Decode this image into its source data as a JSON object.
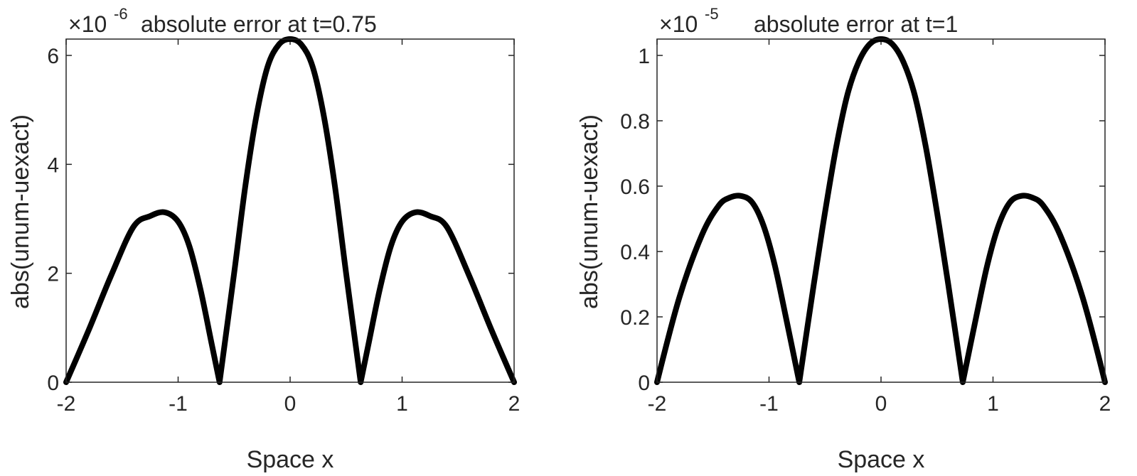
{
  "chart_data": [
    {
      "type": "line",
      "title": "absolute error at t=0.75",
      "xlabel": "Space x",
      "ylabel": "abs(unum-uexact)",
      "exponent_base": "×10",
      "exponent_power": "-6",
      "xlim": [
        -2,
        2
      ],
      "ylim": [
        0,
        6.3
      ],
      "xticks": [
        -2,
        -1,
        0,
        1,
        2
      ],
      "xtick_labels": [
        "-2",
        "-1",
        "0",
        "1",
        "2"
      ],
      "yticks": [
        0,
        2,
        4,
        6
      ],
      "ytick_labels": [
        "0",
        "2",
        "4",
        "6"
      ],
      "grid": false,
      "series": [
        {
          "color": "#000000",
          "x": [
            -2.0,
            -1.8,
            -1.6,
            -1.4,
            -1.25,
            -1.12,
            -1.0,
            -0.9,
            -0.8,
            -0.7,
            -0.63,
            -0.5,
            -0.4,
            -0.3,
            -0.2,
            -0.1,
            0.0,
            0.1,
            0.2,
            0.3,
            0.4,
            0.5,
            0.63,
            0.7,
            0.8,
            0.9,
            1.0,
            1.12,
            1.25,
            1.4,
            1.6,
            1.8,
            2.0
          ],
          "y": [
            0.0,
            0.95,
            1.95,
            2.85,
            3.05,
            3.12,
            2.95,
            2.5,
            1.7,
            0.7,
            0.0,
            2.0,
            3.6,
            4.9,
            5.8,
            6.2,
            6.3,
            6.2,
            5.8,
            4.9,
            3.6,
            2.0,
            0.0,
            0.7,
            1.7,
            2.5,
            2.95,
            3.12,
            3.05,
            2.85,
            1.95,
            0.95,
            0.0
          ]
        }
      ]
    },
    {
      "type": "line",
      "title": "absolute error at t=1",
      "xlabel": "Space x",
      "ylabel": "abs(unum-uexact)",
      "exponent_base": "×10",
      "exponent_power": "-5",
      "xlim": [
        -2,
        2
      ],
      "ylim": [
        0,
        1.05
      ],
      "xticks": [
        -2,
        -1,
        0,
        1,
        2
      ],
      "xtick_labels": [
        "-2",
        "-1",
        "0",
        "1",
        "2"
      ],
      "yticks": [
        0,
        0.2,
        0.4,
        0.6,
        0.8,
        1
      ],
      "ytick_labels": [
        "0",
        "0.2",
        "0.4",
        "0.6",
        "0.8",
        "1"
      ],
      "grid": false,
      "series": [
        {
          "color": "#000000",
          "x": [
            -2.0,
            -1.8,
            -1.6,
            -1.45,
            -1.35,
            -1.25,
            -1.15,
            -1.05,
            -0.95,
            -0.85,
            -0.73,
            -0.6,
            -0.5,
            -0.4,
            -0.3,
            -0.2,
            -0.1,
            0.0,
            0.1,
            0.2,
            0.3,
            0.4,
            0.5,
            0.6,
            0.73,
            0.85,
            0.95,
            1.05,
            1.15,
            1.25,
            1.35,
            1.45,
            1.6,
            1.8,
            2.0
          ],
          "y": [
            0.0,
            0.26,
            0.45,
            0.54,
            0.565,
            0.57,
            0.55,
            0.48,
            0.36,
            0.2,
            0.0,
            0.3,
            0.52,
            0.72,
            0.88,
            0.98,
            1.035,
            1.05,
            1.035,
            0.98,
            0.88,
            0.72,
            0.52,
            0.3,
            0.0,
            0.2,
            0.36,
            0.48,
            0.55,
            0.57,
            0.565,
            0.54,
            0.45,
            0.26,
            0.0
          ]
        }
      ]
    }
  ]
}
